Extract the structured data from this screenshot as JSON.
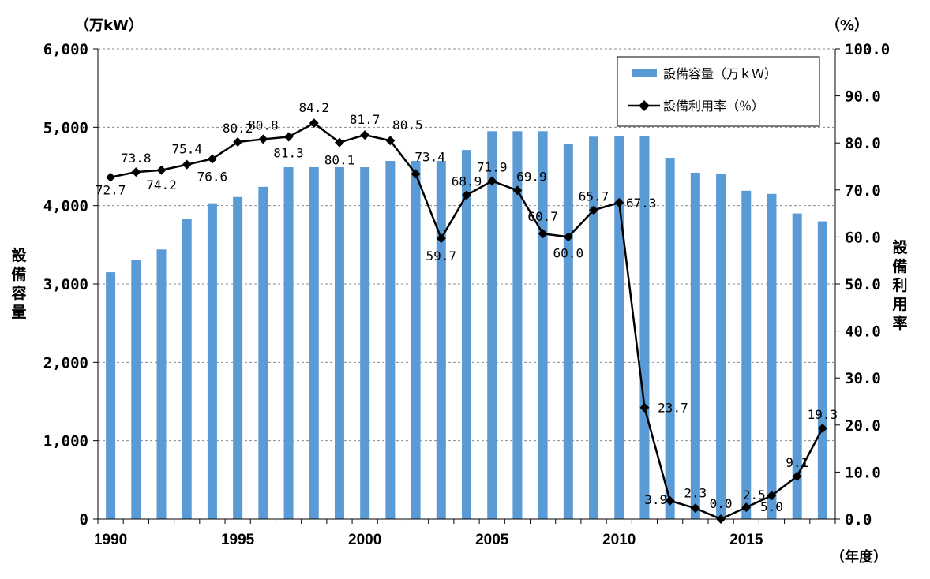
{
  "chart_data": {
    "type": "bar+line",
    "x": [
      1990,
      1991,
      1992,
      1993,
      1994,
      1995,
      1996,
      1997,
      1998,
      1999,
      2000,
      2001,
      2002,
      2003,
      2004,
      2005,
      2006,
      2007,
      2008,
      2009,
      2010,
      2011,
      2012,
      2013,
      2014,
      2015,
      2016,
      2017,
      2018
    ],
    "x_tick_labels": [
      "1990",
      "1995",
      "2000",
      "2005",
      "2010",
      "2015"
    ],
    "series": [
      {
        "name": "設備容量（万ｋＷ）",
        "type": "bar",
        "axis": "left",
        "color": "#5b9bd5",
        "values": [
          3150,
          3310,
          3440,
          3830,
          4030,
          4110,
          4240,
          4490,
          4490,
          4490,
          4490,
          4570,
          4570,
          4570,
          4710,
          4950,
          4950,
          4950,
          4790,
          4880,
          4890,
          4890,
          4610,
          4420,
          4410,
          4190,
          4150,
          3900,
          3800
        ]
      },
      {
        "name": "設備利用率（％）",
        "type": "line",
        "axis": "right",
        "color": "#000000",
        "marker": "diamond",
        "values": [
          72.7,
          73.8,
          74.2,
          75.4,
          76.6,
          80.2,
          80.8,
          81.3,
          84.2,
          80.1,
          81.7,
          80.5,
          73.4,
          59.7,
          68.9,
          71.9,
          69.9,
          60.7,
          60.0,
          65.7,
          67.3,
          23.7,
          3.9,
          2.3,
          0.0,
          2.5,
          5.0,
          9.1,
          19.3
        ],
        "labels": [
          "72.7",
          "73.8",
          "74.2",
          "75.4",
          "76.6",
          "80.2",
          "80.8",
          "81.3",
          "84.2",
          "80.1",
          "81.7",
          "80.5",
          "73.4",
          "59.7",
          "68.9",
          "71.9",
          "69.9",
          "60.7",
          "60.0",
          "65.7",
          "67.3",
          "23.7",
          "3.9",
          "2.3",
          "0.0",
          "2.5",
          "5.0",
          "9.1",
          "19.3"
        ]
      }
    ],
    "y_left": {
      "unit_label": "（万kW）",
      "title": "設備容量",
      "ylim": [
        0,
        6000
      ],
      "tick_values": [
        0,
        1000,
        2000,
        3000,
        4000,
        5000,
        6000
      ],
      "tick_labels": [
        "0",
        "1,000",
        "2,000",
        "3,000",
        "4,000",
        "5,000",
        "6,000"
      ]
    },
    "y_right": {
      "unit_label": "（%）",
      "title": "設備利用率",
      "ylim": [
        0,
        100
      ],
      "tick_values": [
        0,
        10,
        20,
        30,
        40,
        50,
        60,
        70,
        80,
        90,
        100
      ],
      "tick_labels": [
        "0.0",
        "10.0",
        "20.0",
        "30.0",
        "40.0",
        "50.0",
        "60.0",
        "70.0",
        "80.0",
        "90.0",
        "100.0"
      ]
    },
    "x_unit_label": "（年度）",
    "grid": "horizontal-dashed",
    "legend_position": "top-right"
  }
}
